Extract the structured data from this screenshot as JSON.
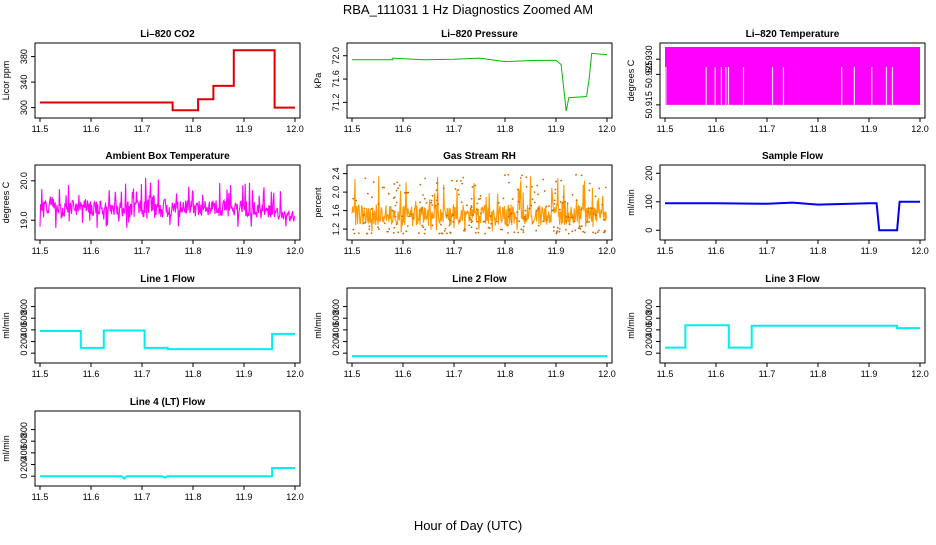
{
  "figure": {
    "title": "RBA_111031  1 Hz Diagnostics Zoomed AM",
    "xlabel": "Hour of Day (UTC)"
  },
  "chart_data": [
    {
      "type": "line",
      "title": "Li–820 CO2",
      "ylabel": "Licor ppm",
      "color": "#dd0000",
      "xlim": [
        11.5,
        12.0
      ],
      "ylim": [
        290,
        395
      ],
      "xticks": [
        "11.5",
        "11.6",
        "11.7",
        "11.8",
        "11.9",
        "12.0"
      ],
      "yticks": [
        "300",
        "340",
        "380"
      ],
      "series": [
        {
          "x": [
            11.5,
            11.76,
            11.76,
            11.81,
            11.81,
            11.84,
            11.84,
            11.88,
            11.88,
            11.96,
            11.96,
            12.0
          ],
          "y": [
            308,
            308,
            296,
            296,
            313,
            313,
            334,
            334,
            390,
            390,
            300,
            300
          ]
        }
      ]
    },
    {
      "type": "line",
      "title": "Li–820 Pressure",
      "ylabel": "kPa",
      "color": "#00bb00",
      "xlim": [
        11.5,
        12.0
      ],
      "ylim": [
        71.0,
        72.15
      ],
      "xticks": [
        "11.5",
        "11.6",
        "11.7",
        "11.8",
        "11.9",
        "12.0"
      ],
      "yticks": [
        "71.2",
        "71.6",
        "72.0"
      ],
      "series": [
        {
          "x": [
            11.5,
            11.58,
            11.58,
            11.64,
            11.7,
            11.75,
            11.8,
            11.86,
            11.9,
            11.91,
            11.92,
            11.925,
            11.96,
            11.965,
            11.97,
            12.0
          ],
          "y": [
            71.93,
            71.93,
            71.96,
            71.93,
            71.94,
            71.96,
            71.9,
            71.92,
            71.92,
            71.85,
            71.05,
            71.28,
            71.3,
            71.6,
            72.04,
            72.02
          ]
        }
      ]
    },
    {
      "type": "area",
      "title": "Li–820 Temperature",
      "ylabel": "degrees C",
      "color": "#ff00ff",
      "xlim": [
        11.5,
        12.0
      ],
      "ylim": [
        50.912,
        50.934
      ],
      "xticks": [
        "11.5",
        "11.6",
        "11.7",
        "11.8",
        "11.9",
        "12.0"
      ],
      "yticks": [
        "50.915",
        "50.925",
        "50.930"
      ],
      "series": [
        {
          "x": [
            11.5,
            12.0
          ],
          "y_min": [
            50.915,
            50.915
          ],
          "y_max": [
            50.934,
            50.934
          ]
        }
      ]
    },
    {
      "type": "line",
      "title": "Ambient Box Temperature",
      "ylabel": "degrees C",
      "color": "#ff00ff",
      "xlim": [
        11.5,
        12.0
      ],
      "ylim": [
        18.6,
        20.3
      ],
      "xticks": [
        "11.5",
        "11.6",
        "11.7",
        "11.8",
        "11.9",
        "12.0"
      ],
      "yticks": [
        "19.0",
        "20.0"
      ],
      "series": [
        {
          "x": [
            11.5,
            11.55,
            11.6,
            11.65,
            11.7,
            11.75,
            11.8,
            11.85,
            11.9,
            11.95,
            12.0
          ],
          "y_min": [
            18.8,
            18.8,
            18.8,
            18.8,
            18.7,
            18.8,
            18.8,
            18.8,
            18.8,
            18.8,
            18.8
          ],
          "y_max": [
            20.0,
            20.0,
            20.0,
            20.0,
            20.2,
            20.1,
            20.0,
            20.0,
            20.0,
            19.9,
            19.6
          ],
          "y_mean": [
            19.3,
            19.3,
            19.3,
            19.3,
            19.3,
            19.3,
            19.3,
            19.3,
            19.3,
            19.2,
            19.1
          ]
        }
      ]
    },
    {
      "type": "line",
      "title": "Gas Stream RH",
      "ylabel": "percent",
      "color": "#ff9900",
      "xlim": [
        11.5,
        12.0
      ],
      "ylim": [
        1.05,
        2.5
      ],
      "xticks": [
        "11.5",
        "11.6",
        "11.7",
        "11.8",
        "11.9",
        "12.0"
      ],
      "yticks": [
        "1.2",
        "1.6",
        "2.0",
        "2.4"
      ],
      "series": [
        {
          "x": [
            11.5,
            11.55,
            11.6,
            11.65,
            11.7,
            11.75,
            11.8,
            11.85,
            11.9,
            11.95,
            12.0
          ],
          "y_min": [
            1.1,
            1.1,
            1.1,
            1.1,
            1.1,
            1.1,
            1.1,
            1.1,
            1.1,
            1.1,
            1.1
          ],
          "y_max": [
            2.4,
            2.4,
            2.4,
            2.4,
            2.3,
            2.4,
            2.4,
            2.4,
            2.3,
            2.4,
            2.1
          ],
          "y_mean": [
            1.5,
            1.5,
            1.5,
            1.5,
            1.5,
            1.5,
            1.5,
            1.5,
            1.5,
            1.5,
            1.5
          ]
        }
      ]
    },
    {
      "type": "line",
      "title": "Sample Flow",
      "ylabel": "ml/min",
      "color": "#0000ee",
      "xlim": [
        11.5,
        12.0
      ],
      "ylim": [
        -20,
        215
      ],
      "xticks": [
        "11.5",
        "11.6",
        "11.7",
        "11.8",
        "11.9",
        "12.0"
      ],
      "yticks": [
        "0",
        "100",
        "200"
      ],
      "series": [
        {
          "x": [
            11.5,
            11.6,
            11.7,
            11.75,
            11.8,
            11.9,
            11.915,
            11.92,
            11.955,
            11.96,
            12.0
          ],
          "y": [
            95,
            95,
            93,
            97,
            90,
            95,
            95,
            0,
            0,
            100,
            100
          ]
        }
      ]
    },
    {
      "type": "line",
      "title": "Line 1 Flow",
      "ylabel": "ml/min",
      "color": "#00eeee",
      "xlim": [
        11.5,
        12.0
      ],
      "ylim": [
        -100,
        1050
      ],
      "xticks": [
        "11.5",
        "11.6",
        "11.7",
        "11.8",
        "11.9",
        "12.0"
      ],
      "yticks": [
        "0",
        "200",
        "400",
        "600",
        "800"
      ],
      "series": [
        {
          "x": [
            11.5,
            11.58,
            11.58,
            11.625,
            11.625,
            11.705,
            11.705,
            11.75,
            11.75,
            11.955,
            11.955,
            12.0
          ],
          "y": [
            380,
            380,
            90,
            90,
            390,
            390,
            90,
            90,
            70,
            70,
            330,
            330
          ]
        }
      ]
    },
    {
      "type": "line",
      "title": "Line 2 Flow",
      "ylabel": "ml/min",
      "color": "#00eeee",
      "xlim": [
        11.5,
        12.0
      ],
      "ylim": [
        -100,
        1050
      ],
      "xticks": [
        "11.5",
        "11.6",
        "11.7",
        "11.8",
        "11.9",
        "12.0"
      ],
      "yticks": [
        "0",
        "200",
        "400",
        "600",
        "800"
      ],
      "series": [
        {
          "x": [
            11.5,
            12.0
          ],
          "y": [
            -50,
            -50
          ]
        }
      ]
    },
    {
      "type": "line",
      "title": "Line 3 Flow",
      "ylabel": "ml/min",
      "color": "#00eeee",
      "xlim": [
        11.5,
        12.0
      ],
      "ylim": [
        -100,
        1050
      ],
      "xticks": [
        "11.5",
        "11.6",
        "11.7",
        "11.8",
        "11.9",
        "12.0"
      ],
      "yticks": [
        "0",
        "200",
        "400",
        "600",
        "800"
      ],
      "series": [
        {
          "x": [
            11.5,
            11.54,
            11.54,
            11.625,
            11.625,
            11.67,
            11.67,
            11.955,
            11.955,
            12.0
          ],
          "y": [
            95,
            95,
            480,
            480,
            95,
            95,
            470,
            470,
            430,
            430
          ]
        }
      ]
    },
    {
      "type": "line",
      "title": "Line 4 (LT) Flow",
      "ylabel": "ml/min",
      "color": "#00eeee",
      "xlim": [
        11.5,
        12.0
      ],
      "ylim": [
        -100,
        1050
      ],
      "xticks": [
        "11.5",
        "11.6",
        "11.7",
        "11.8",
        "11.9",
        "12.0"
      ],
      "yticks": [
        "0",
        "200",
        "400",
        "600",
        "800"
      ],
      "series": [
        {
          "x": [
            11.5,
            11.66,
            11.665,
            11.67,
            11.74,
            11.745,
            11.75,
            11.955,
            11.955,
            12.0
          ],
          "y": [
            0,
            0,
            -40,
            0,
            0,
            -25,
            0,
            0,
            140,
            140
          ]
        }
      ]
    }
  ]
}
